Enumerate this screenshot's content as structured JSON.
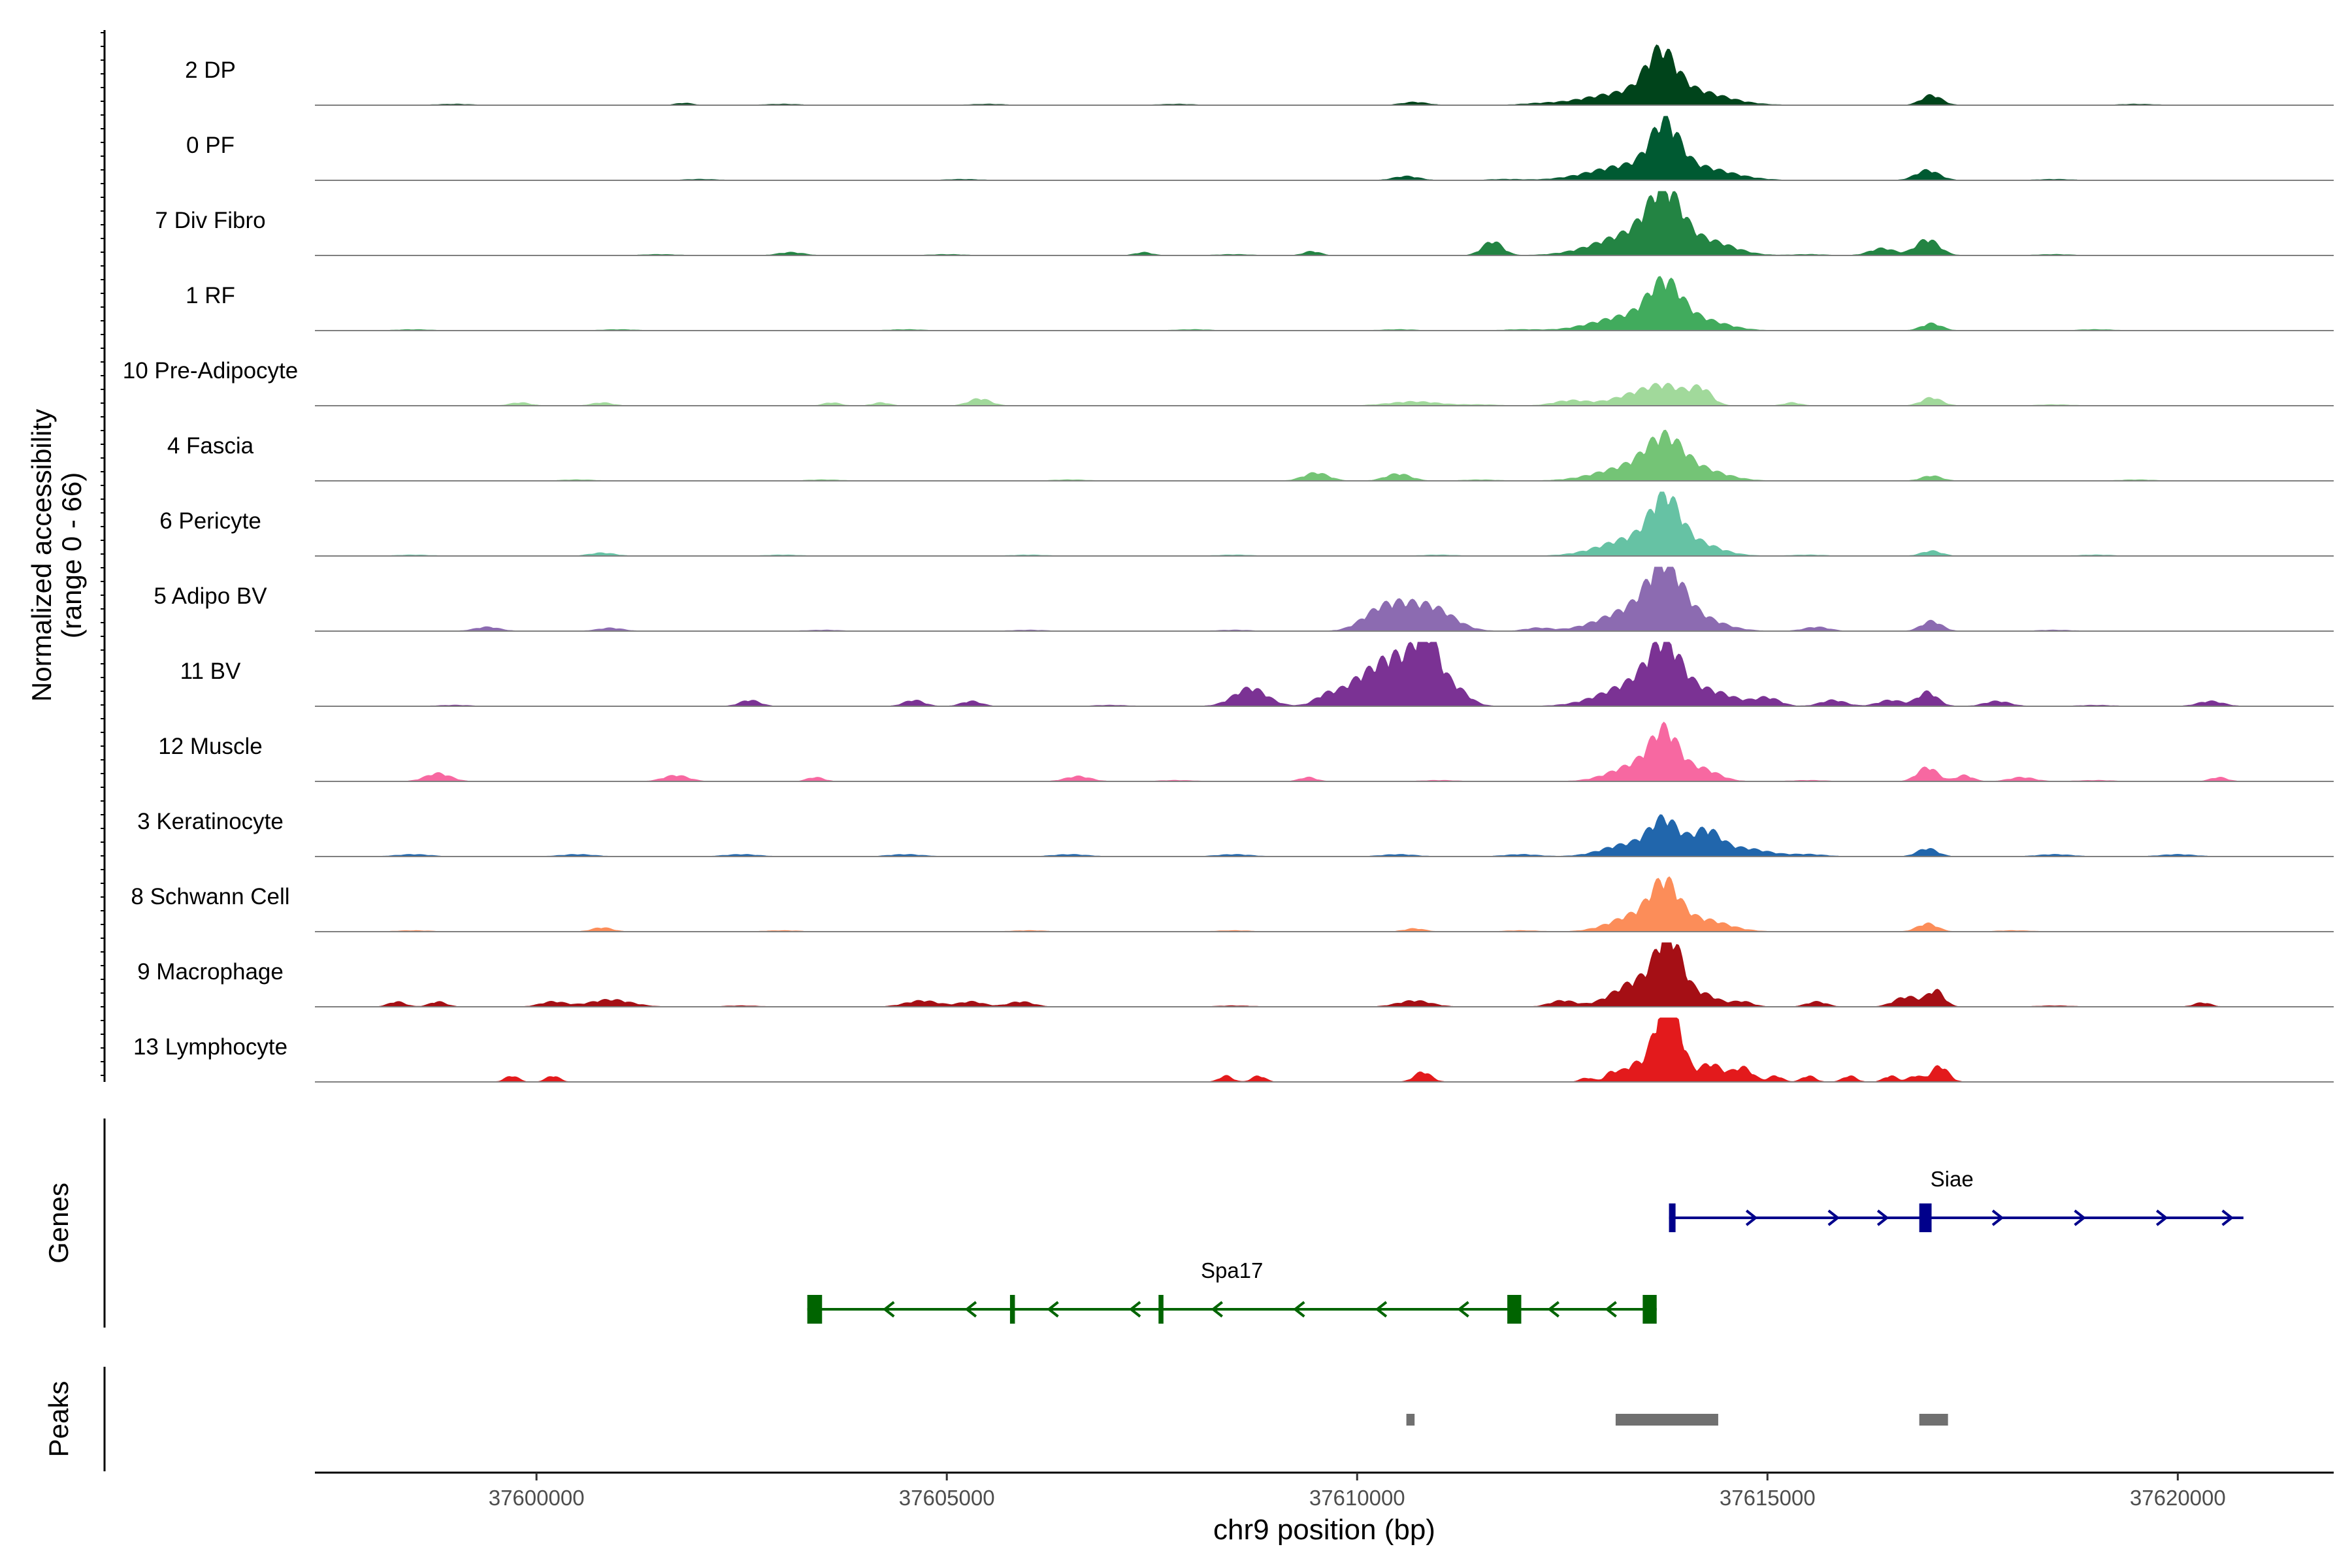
{
  "chart_data": {
    "type": "area",
    "title": "",
    "ylabel_line1": "Normalized accessibility",
    "ylabel_line2": "(range 0 - 66)",
    "ylim": [
      0,
      66
    ],
    "xlabel": "chr9 position (bp)",
    "xlim": [
      37597300,
      37621900
    ],
    "xticks": [
      37600000,
      37605000,
      37610000,
      37615000,
      37620000
    ],
    "xtick_labels": [
      "37600000",
      "37605000",
      "37610000",
      "37615000",
      "37620000"
    ],
    "tracks": [
      {
        "name": "2 DP",
        "color": "#00441b",
        "peaks": [
          [
            37613700,
            40,
            180
          ],
          [
            37613300,
            12,
            500
          ],
          [
            37614100,
            12,
            400
          ],
          [
            37617000,
            10,
            120
          ],
          [
            37610700,
            3,
            150
          ],
          [
            37601800,
            2,
            100
          ]
        ],
        "noise": [
          [
            37599000,
            1
          ],
          [
            37603000,
            1
          ],
          [
            37605500,
            1
          ],
          [
            37607800,
            1
          ],
          [
            37612200,
            1
          ],
          [
            37619500,
            1
          ]
        ]
      },
      {
        "name": "0 PF",
        "color": "#005a32",
        "peaks": [
          [
            37613750,
            44,
            170
          ],
          [
            37613300,
            14,
            450
          ],
          [
            37614150,
            12,
            400
          ],
          [
            37616950,
            10,
            140
          ],
          [
            37610600,
            4,
            150
          ]
        ],
        "noise": [
          [
            37602000,
            1
          ],
          [
            37605200,
            1
          ],
          [
            37611800,
            1
          ],
          [
            37618500,
            1
          ]
        ]
      },
      {
        "name": "7 Div Fibro",
        "color": "#238443",
        "peaks": [
          [
            37613750,
            50,
            200
          ],
          [
            37613400,
            22,
            450
          ],
          [
            37614300,
            12,
            300
          ],
          [
            37611650,
            14,
            120
          ],
          [
            37616950,
            16,
            140
          ],
          [
            37616400,
            7,
            150
          ],
          [
            37609450,
            4,
            100
          ],
          [
            37603100,
            3,
            150
          ],
          [
            37607400,
            3,
            100
          ]
        ],
        "noise": [
          [
            37601500,
            1
          ],
          [
            37605000,
            1
          ],
          [
            37608500,
            1
          ],
          [
            37615500,
            1
          ],
          [
            37618500,
            1
          ]
        ]
      },
      {
        "name": "1 RF",
        "color": "#41ab5d",
        "peaks": [
          [
            37613750,
            40,
            200
          ],
          [
            37613300,
            14,
            400
          ],
          [
            37614200,
            10,
            300
          ],
          [
            37617000,
            7,
            120
          ]
        ],
        "noise": [
          [
            37598500,
            1
          ],
          [
            37601000,
            1
          ],
          [
            37604500,
            1
          ],
          [
            37608000,
            1
          ],
          [
            37610500,
            1
          ],
          [
            37612000,
            1
          ],
          [
            37619000,
            1
          ]
        ]
      },
      {
        "name": "10 Pre-Adipocyte",
        "color": "#a1d99b",
        "peaks": [
          [
            37613800,
            16,
            250
          ],
          [
            37613400,
            10,
            300
          ],
          [
            37614200,
            14,
            120
          ],
          [
            37617000,
            8,
            120
          ],
          [
            37605400,
            7,
            130
          ],
          [
            37610700,
            4,
            300
          ],
          [
            37612600,
            5,
            200
          ],
          [
            37599800,
            3,
            120
          ],
          [
            37600800,
            3,
            120
          ],
          [
            37603600,
            3,
            100
          ],
          [
            37604200,
            3,
            100
          ],
          [
            37615300,
            3,
            100
          ]
        ],
        "noise": [
          [
            37611500,
            1
          ],
          [
            37618500,
            1
          ]
        ]
      },
      {
        "name": "4 Fascia",
        "color": "#74c476",
        "peaks": [
          [
            37613750,
            34,
            220
          ],
          [
            37613350,
            14,
            400
          ],
          [
            37614200,
            10,
            300
          ],
          [
            37609500,
            8,
            150
          ],
          [
            37610500,
            7,
            150
          ],
          [
            37617000,
            5,
            120
          ]
        ],
        "noise": [
          [
            37600500,
            1
          ],
          [
            37603500,
            1
          ],
          [
            37606500,
            1
          ],
          [
            37611500,
            1
          ],
          [
            37619500,
            1
          ]
        ]
      },
      {
        "name": "6 Pericyte",
        "color": "#66c2a4",
        "peaks": [
          [
            37613750,
            44,
            170
          ],
          [
            37613400,
            18,
            400
          ],
          [
            37614100,
            12,
            300
          ],
          [
            37617000,
            5,
            120
          ],
          [
            37600800,
            3,
            150
          ]
        ],
        "noise": [
          [
            37598500,
            1
          ],
          [
            37603000,
            1
          ],
          [
            37606000,
            1
          ],
          [
            37608500,
            1
          ],
          [
            37611000,
            1
          ],
          [
            37615500,
            1
          ],
          [
            37619000,
            1
          ]
        ]
      },
      {
        "name": "5 Adipo BV",
        "color": "#8c6bb1",
        "peaks": [
          [
            37613750,
            50,
            200
          ],
          [
            37613400,
            22,
            400
          ],
          [
            37614150,
            12,
            300
          ],
          [
            37610500,
            22,
            250
          ],
          [
            37610950,
            20,
            250
          ],
          [
            37610200,
            10,
            200
          ],
          [
            37617000,
            10,
            120
          ],
          [
            37599400,
            4,
            150
          ],
          [
            37600900,
            3,
            150
          ],
          [
            37615600,
            4,
            150
          ],
          [
            37612200,
            3,
            150
          ]
        ],
        "noise": [
          [
            37603500,
            1
          ],
          [
            37606000,
            1
          ],
          [
            37608500,
            1
          ],
          [
            37618500,
            1
          ]
        ]
      },
      {
        "name": "11 BV",
        "color": "#7b3294",
        "peaks": [
          [
            37610850,
            54,
            130
          ],
          [
            37610550,
            40,
            250
          ],
          [
            37610100,
            26,
            300
          ],
          [
            37611150,
            20,
            180
          ],
          [
            37608700,
            18,
            200
          ],
          [
            37613750,
            48,
            200
          ],
          [
            37613400,
            22,
            400
          ],
          [
            37614300,
            14,
            300
          ],
          [
            37616950,
            14,
            120
          ],
          [
            37602600,
            6,
            120
          ],
          [
            37604600,
            6,
            120
          ],
          [
            37605300,
            5,
            120
          ],
          [
            37609600,
            6,
            120
          ],
          [
            37615000,
            8,
            150
          ],
          [
            37615800,
            6,
            150
          ],
          [
            37616500,
            6,
            150
          ],
          [
            37617800,
            5,
            150
          ],
          [
            37620400,
            5,
            150
          ]
        ],
        "noise": [
          [
            37599000,
            1
          ],
          [
            37607000,
            1
          ],
          [
            37619000,
            1
          ]
        ]
      },
      {
        "name": "12 Muscle",
        "color": "#f768a1",
        "peaks": [
          [
            37613750,
            44,
            170
          ],
          [
            37613400,
            16,
            300
          ],
          [
            37614200,
            12,
            200
          ],
          [
            37616950,
            14,
            120
          ],
          [
            37598800,
            8,
            150
          ],
          [
            37601700,
            6,
            150
          ],
          [
            37603400,
            4,
            100
          ],
          [
            37606600,
            5,
            150
          ],
          [
            37609400,
            4,
            100
          ],
          [
            37617400,
            6,
            100
          ],
          [
            37618100,
            4,
            150
          ],
          [
            37620500,
            4,
            100
          ]
        ],
        "noise": [
          [
            37607800,
            1
          ],
          [
            37611000,
            1
          ],
          [
            37615500,
            1
          ],
          [
            37619000,
            1
          ]
        ]
      },
      {
        "name": "3 Keratinocyte",
        "color": "#2166ac",
        "peaks": [
          [
            37613750,
            34,
            180
          ],
          [
            37614250,
            24,
            170
          ],
          [
            37613300,
            12,
            300
          ],
          [
            37616950,
            8,
            120
          ],
          [
            37614700,
            8,
            300
          ]
        ],
        "noise": [
          [
            37598500,
            2
          ],
          [
            37600500,
            2
          ],
          [
            37602500,
            2
          ],
          [
            37604500,
            2
          ],
          [
            37606500,
            2
          ],
          [
            37608500,
            2
          ],
          [
            37610500,
            2
          ],
          [
            37612000,
            2
          ],
          [
            37615500,
            2
          ],
          [
            37618500,
            2
          ],
          [
            37620000,
            2
          ]
        ]
      },
      {
        "name": "8 Schwann Cell",
        "color": "#fc8d59",
        "peaks": [
          [
            37613750,
            40,
            170
          ],
          [
            37613400,
            16,
            300
          ],
          [
            37614200,
            12,
            300
          ],
          [
            37616950,
            8,
            120
          ],
          [
            37600800,
            4,
            120
          ],
          [
            37610700,
            3,
            120
          ]
        ],
        "noise": [
          [
            37598500,
            1
          ],
          [
            37603000,
            1
          ],
          [
            37606000,
            1
          ],
          [
            37608500,
            1
          ],
          [
            37612000,
            1
          ],
          [
            37618000,
            1
          ]
        ]
      },
      {
        "name": "9 Macrophage",
        "color": "#a50f15",
        "peaks": [
          [
            37613800,
            60,
            150
          ],
          [
            37613450,
            26,
            300
          ],
          [
            37614200,
            12,
            200
          ],
          [
            37617050,
            16,
            100
          ],
          [
            37616700,
            10,
            150
          ],
          [
            37598300,
            5,
            100
          ],
          [
            37598800,
            5,
            100
          ],
          [
            37600200,
            5,
            150
          ],
          [
            37600900,
            7,
            250
          ],
          [
            37604700,
            6,
            200
          ],
          [
            37605300,
            5,
            150
          ],
          [
            37605900,
            5,
            150
          ],
          [
            37610700,
            6,
            200
          ],
          [
            37612500,
            6,
            150
          ],
          [
            37614700,
            5,
            120
          ],
          [
            37615600,
            5,
            120
          ],
          [
            37620300,
            4,
            100
          ]
        ],
        "noise": [
          [
            37602500,
            1
          ],
          [
            37608500,
            1
          ],
          [
            37618500,
            1
          ]
        ]
      },
      {
        "name": "13 Lymphocyte",
        "color": "#e31a1c",
        "peaks": [
          [
            37613800,
            66,
            90
          ],
          [
            37613650,
            40,
            90
          ],
          [
            37613950,
            30,
            90
          ],
          [
            37613400,
            18,
            150
          ],
          [
            37614300,
            18,
            150
          ],
          [
            37614700,
            14,
            120
          ],
          [
            37617100,
            16,
            100
          ],
          [
            37599700,
            6,
            80
          ],
          [
            37600200,
            6,
            80
          ],
          [
            37608400,
            6,
            80
          ],
          [
            37608800,
            6,
            80
          ],
          [
            37610800,
            10,
            100
          ],
          [
            37615100,
            6,
            80
          ],
          [
            37615500,
            6,
            80
          ],
          [
            37616000,
            6,
            80
          ],
          [
            37616500,
            6,
            80
          ],
          [
            37616800,
            6,
            80
          ],
          [
            37613100,
            8,
            80
          ],
          [
            37612800,
            4,
            80
          ]
        ],
        "noise": []
      }
    ],
    "genes_label": "Genes",
    "genes": [
      {
        "name": "Siae",
        "color": "#00008b",
        "strand": "+",
        "start": 37613800,
        "end": 37620800,
        "exons": [
          [
            37613800,
            37613880
          ],
          [
            37616850,
            37617000
          ]
        ],
        "arrows": [
          37614800,
          37615800,
          37616400,
          37617800,
          37618800,
          37619800,
          37620600
        ]
      },
      {
        "name": "Spa17",
        "color": "#006400",
        "strand": "-",
        "start": 37603300,
        "end": 37613650,
        "exons": [
          [
            37603300,
            37603480
          ],
          [
            37605770,
            37605830
          ],
          [
            37607580,
            37607640
          ],
          [
            37611830,
            37612000
          ],
          [
            37613480,
            37613650
          ]
        ],
        "arrows": [
          37604300,
          37605300,
          37606300,
          37607300,
          37608300,
          37609300,
          37610300,
          37611300,
          37612400,
          37613100
        ]
      }
    ],
    "peaks_label": "Peaks",
    "peak_regions": [
      [
        37610600,
        37610700
      ],
      [
        37613150,
        37614400
      ],
      [
        37616850,
        37617200
      ]
    ],
    "peak_color": "#707070"
  }
}
